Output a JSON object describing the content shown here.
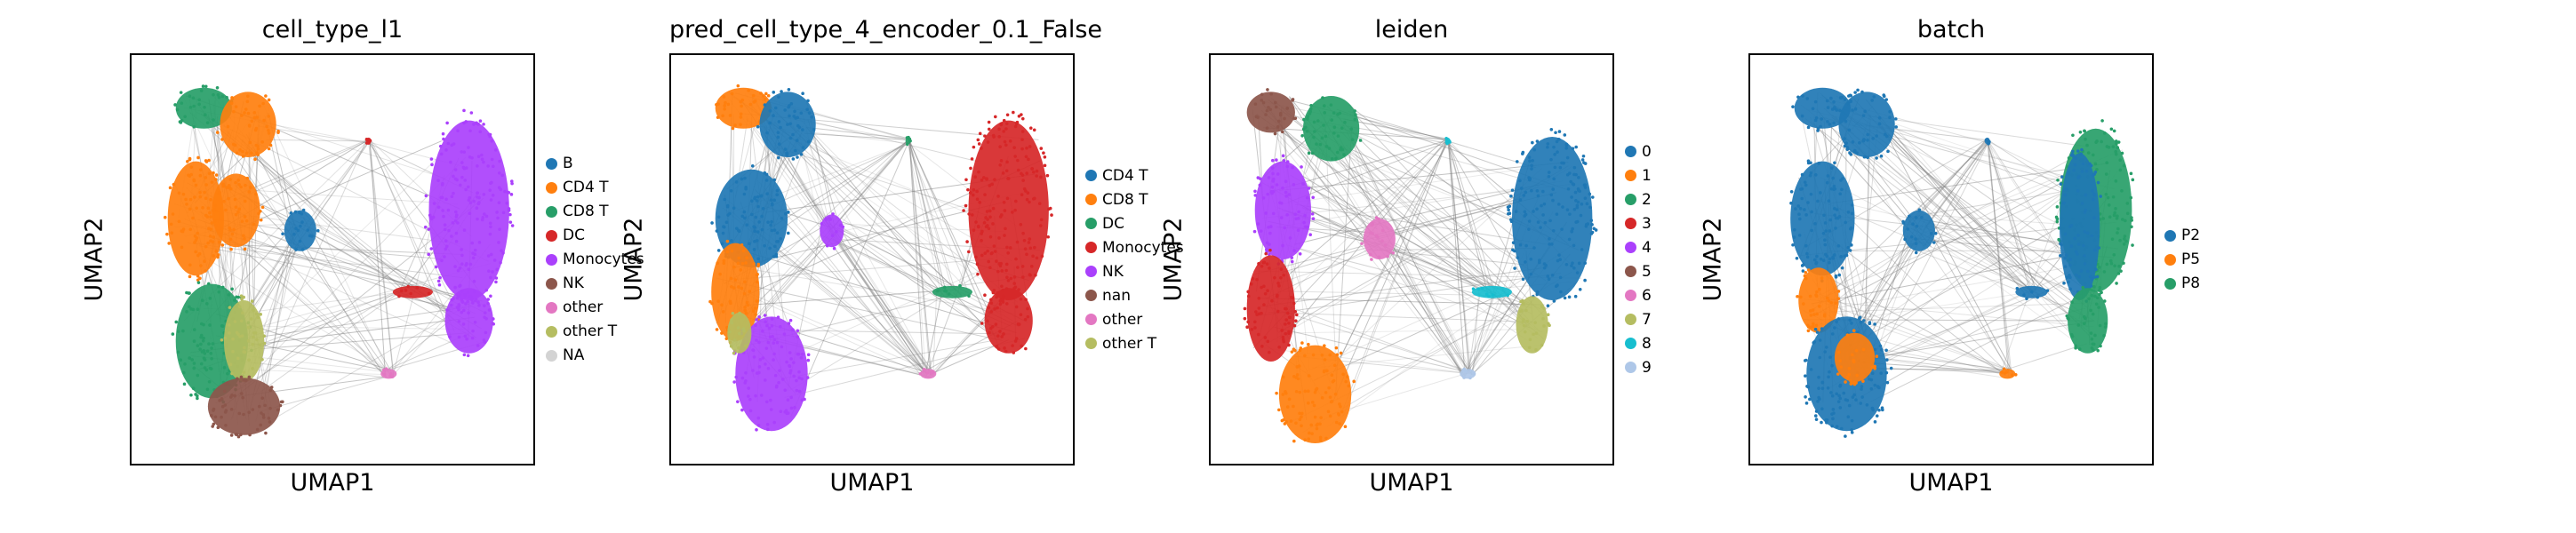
{
  "chart_data": [
    {
      "type": "scatter",
      "title": "cell_type_l1",
      "xlabel": "UMAP1",
      "ylabel": "UMAP2",
      "grid": false,
      "legend_position": "right",
      "categories": [
        {
          "name": "B",
          "color": "#1f77b4"
        },
        {
          "name": "CD4 T",
          "color": "#ff7f0e"
        },
        {
          "name": "CD8 T",
          "color": "#279e68"
        },
        {
          "name": "DC",
          "color": "#d62728"
        },
        {
          "name": "Monocytes",
          "color": "#aa40fc"
        },
        {
          "name": "NK",
          "color": "#8c564b"
        },
        {
          "name": "other",
          "color": "#e377c2"
        },
        {
          "name": "other T",
          "color": "#b5bd61"
        },
        {
          "name": "NA",
          "color": "#d3d3d3"
        }
      ],
      "clusters": [
        {
          "cat": "CD8 T",
          "cx": 0.18,
          "cy": 0.87,
          "rx": 0.07,
          "ry": 0.05
        },
        {
          "cat": "CD4 T",
          "cx": 0.29,
          "cy": 0.83,
          "rx": 0.07,
          "ry": 0.08
        },
        {
          "cat": "CD4 T",
          "cx": 0.16,
          "cy": 0.6,
          "rx": 0.07,
          "ry": 0.14
        },
        {
          "cat": "CD4 T",
          "cx": 0.26,
          "cy": 0.62,
          "rx": 0.06,
          "ry": 0.09
        },
        {
          "cat": "B",
          "cx": 0.42,
          "cy": 0.57,
          "rx": 0.04,
          "ry": 0.05
        },
        {
          "cat": "CD8 T",
          "cx": 0.2,
          "cy": 0.3,
          "rx": 0.09,
          "ry": 0.14
        },
        {
          "cat": "other T",
          "cx": 0.28,
          "cy": 0.3,
          "rx": 0.05,
          "ry": 0.1
        },
        {
          "cat": "NK",
          "cx": 0.28,
          "cy": 0.14,
          "rx": 0.09,
          "ry": 0.07
        },
        {
          "cat": "Monocytes",
          "cx": 0.84,
          "cy": 0.62,
          "rx": 0.1,
          "ry": 0.22
        },
        {
          "cat": "Monocytes",
          "cx": 0.84,
          "cy": 0.35,
          "rx": 0.06,
          "ry": 0.08
        },
        {
          "cat": "DC",
          "cx": 0.7,
          "cy": 0.42,
          "rx": 0.05,
          "ry": 0.015
        },
        {
          "cat": "other",
          "cx": 0.64,
          "cy": 0.22,
          "rx": 0.02,
          "ry": 0.012
        },
        {
          "cat": "DC",
          "cx": 0.59,
          "cy": 0.79,
          "rx": 0.005,
          "ry": 0.008
        }
      ]
    },
    {
      "type": "scatter",
      "title": "pred_cell_type_4_encoder_0.1_False",
      "xlabel": "UMAP1",
      "ylabel": "UMAP2",
      "grid": false,
      "legend_position": "right",
      "categories": [
        {
          "name": "CD4 T",
          "color": "#1f77b4"
        },
        {
          "name": "CD8 T",
          "color": "#ff7f0e"
        },
        {
          "name": "DC",
          "color": "#279e68"
        },
        {
          "name": "Monocytes",
          "color": "#d62728"
        },
        {
          "name": "NK",
          "color": "#aa40fc"
        },
        {
          "name": "nan",
          "color": "#8c564b"
        },
        {
          "name": "other",
          "color": "#e377c2"
        },
        {
          "name": "other T",
          "color": "#b5bd61"
        }
      ],
      "clusters": [
        {
          "cat": "CD8 T",
          "cx": 0.18,
          "cy": 0.87,
          "rx": 0.07,
          "ry": 0.05
        },
        {
          "cat": "CD4 T",
          "cx": 0.29,
          "cy": 0.83,
          "rx": 0.07,
          "ry": 0.08
        },
        {
          "cat": "CD4 T",
          "cx": 0.2,
          "cy": 0.6,
          "rx": 0.09,
          "ry": 0.12
        },
        {
          "cat": "NK",
          "cx": 0.4,
          "cy": 0.57,
          "rx": 0.03,
          "ry": 0.04
        },
        {
          "cat": "CD8 T",
          "cx": 0.16,
          "cy": 0.42,
          "rx": 0.06,
          "ry": 0.12
        },
        {
          "cat": "NK",
          "cx": 0.25,
          "cy": 0.22,
          "rx": 0.09,
          "ry": 0.14
        },
        {
          "cat": "other T",
          "cx": 0.17,
          "cy": 0.32,
          "rx": 0.03,
          "ry": 0.05
        },
        {
          "cat": "Monocytes",
          "cx": 0.84,
          "cy": 0.62,
          "rx": 0.1,
          "ry": 0.22
        },
        {
          "cat": "Monocytes",
          "cx": 0.84,
          "cy": 0.35,
          "rx": 0.06,
          "ry": 0.08
        },
        {
          "cat": "DC",
          "cx": 0.7,
          "cy": 0.42,
          "rx": 0.05,
          "ry": 0.015
        },
        {
          "cat": "other",
          "cx": 0.64,
          "cy": 0.22,
          "rx": 0.02,
          "ry": 0.012
        },
        {
          "cat": "DC",
          "cx": 0.59,
          "cy": 0.79,
          "rx": 0.005,
          "ry": 0.008
        }
      ]
    },
    {
      "type": "scatter",
      "title": "leiden",
      "xlabel": "UMAP1",
      "ylabel": "UMAP2",
      "grid": false,
      "legend_position": "right",
      "categories": [
        {
          "name": "0",
          "color": "#1f77b4"
        },
        {
          "name": "1",
          "color": "#ff7f0e"
        },
        {
          "name": "2",
          "color": "#279e68"
        },
        {
          "name": "3",
          "color": "#d62728"
        },
        {
          "name": "4",
          "color": "#aa40fc"
        },
        {
          "name": "5",
          "color": "#8c564b"
        },
        {
          "name": "6",
          "color": "#e377c2"
        },
        {
          "name": "7",
          "color": "#b5bd61"
        },
        {
          "name": "8",
          "color": "#17becf"
        },
        {
          "name": "9",
          "color": "#aec7e8"
        }
      ],
      "clusters": [
        {
          "cat": "5",
          "cx": 0.15,
          "cy": 0.86,
          "rx": 0.06,
          "ry": 0.05
        },
        {
          "cat": "2",
          "cx": 0.3,
          "cy": 0.82,
          "rx": 0.07,
          "ry": 0.08
        },
        {
          "cat": "4",
          "cx": 0.18,
          "cy": 0.62,
          "rx": 0.07,
          "ry": 0.12
        },
        {
          "cat": "6",
          "cx": 0.42,
          "cy": 0.55,
          "rx": 0.04,
          "ry": 0.05
        },
        {
          "cat": "3",
          "cx": 0.15,
          "cy": 0.38,
          "rx": 0.06,
          "ry": 0.13
        },
        {
          "cat": "1",
          "cx": 0.26,
          "cy": 0.17,
          "rx": 0.09,
          "ry": 0.12
        },
        {
          "cat": "0",
          "cx": 0.85,
          "cy": 0.6,
          "rx": 0.1,
          "ry": 0.2
        },
        {
          "cat": "7",
          "cx": 0.8,
          "cy": 0.34,
          "rx": 0.04,
          "ry": 0.07
        },
        {
          "cat": "8",
          "cx": 0.7,
          "cy": 0.42,
          "rx": 0.05,
          "ry": 0.015
        },
        {
          "cat": "9",
          "cx": 0.64,
          "cy": 0.22,
          "rx": 0.02,
          "ry": 0.012
        },
        {
          "cat": "8",
          "cx": 0.59,
          "cy": 0.79,
          "rx": 0.005,
          "ry": 0.008
        }
      ]
    },
    {
      "type": "scatter",
      "title": "batch",
      "xlabel": "UMAP1",
      "ylabel": "UMAP2",
      "grid": false,
      "legend_position": "right",
      "categories": [
        {
          "name": "P2",
          "color": "#1f77b4"
        },
        {
          "name": "P5",
          "color": "#ff7f0e"
        },
        {
          "name": "P8",
          "color": "#279e68"
        }
      ],
      "clusters": [
        {
          "cat": "P2",
          "cx": 0.18,
          "cy": 0.87,
          "rx": 0.07,
          "ry": 0.05
        },
        {
          "cat": "P2",
          "cx": 0.29,
          "cy": 0.83,
          "rx": 0.07,
          "ry": 0.08
        },
        {
          "cat": "P2",
          "cx": 0.18,
          "cy": 0.6,
          "rx": 0.08,
          "ry": 0.14
        },
        {
          "cat": "P5",
          "cx": 0.17,
          "cy": 0.4,
          "rx": 0.05,
          "ry": 0.08
        },
        {
          "cat": "P2",
          "cx": 0.24,
          "cy": 0.22,
          "rx": 0.1,
          "ry": 0.14
        },
        {
          "cat": "P5",
          "cx": 0.26,
          "cy": 0.26,
          "rx": 0.05,
          "ry": 0.06
        },
        {
          "cat": "P2",
          "cx": 0.42,
          "cy": 0.57,
          "rx": 0.04,
          "ry": 0.05
        },
        {
          "cat": "P8",
          "cx": 0.86,
          "cy": 0.62,
          "rx": 0.09,
          "ry": 0.2
        },
        {
          "cat": "P2",
          "cx": 0.82,
          "cy": 0.58,
          "rx": 0.05,
          "ry": 0.18
        },
        {
          "cat": "P8",
          "cx": 0.84,
          "cy": 0.35,
          "rx": 0.05,
          "ry": 0.08
        },
        {
          "cat": "P2",
          "cx": 0.7,
          "cy": 0.42,
          "rx": 0.04,
          "ry": 0.015
        },
        {
          "cat": "P5",
          "cx": 0.64,
          "cy": 0.22,
          "rx": 0.02,
          "ry": 0.012
        },
        {
          "cat": "P2",
          "cx": 0.59,
          "cy": 0.79,
          "rx": 0.005,
          "ry": 0.008
        }
      ]
    }
  ]
}
